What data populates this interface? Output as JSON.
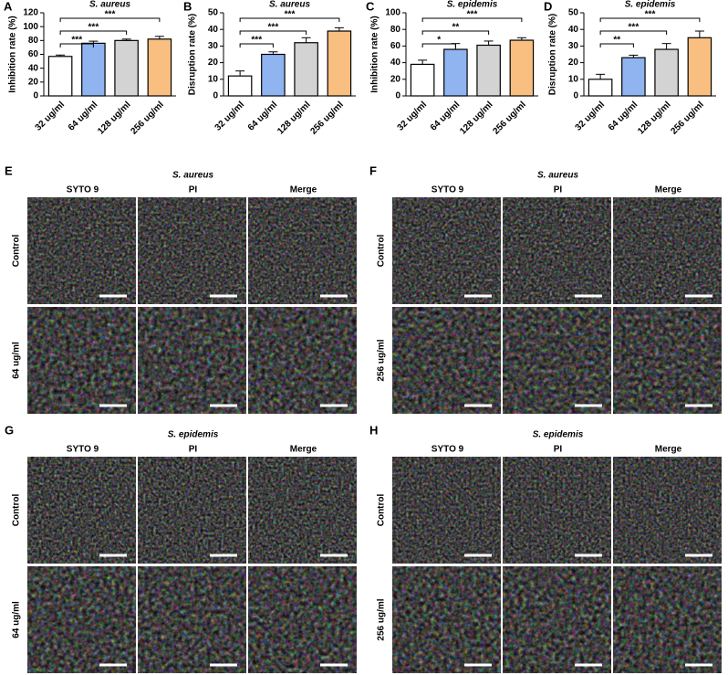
{
  "chart_data": [
    {
      "type": "bar",
      "panel": "A",
      "title": "S. aureus",
      "ylabel": "Inhibition rate (%)",
      "categories": [
        "32 ug/ml",
        "64 ug/ml",
        "128 ug/ml",
        "256 ug/ml"
      ],
      "values": [
        57,
        76,
        80,
        82
      ],
      "errors": [
        2,
        3,
        2,
        4
      ],
      "colors": [
        "#ffffff",
        "#8fb4f0",
        "#d3d3d3",
        "#f9bf80"
      ],
      "ylim": [
        0,
        120
      ],
      "yticks": [
        0,
        20,
        40,
        60,
        80,
        100,
        120
      ],
      "significance": [
        {
          "label": "***",
          "between": [
            0,
            1
          ]
        },
        {
          "label": "***",
          "between": [
            0,
            2
          ]
        },
        {
          "label": "***",
          "between": [
            0,
            3
          ]
        }
      ]
    },
    {
      "type": "bar",
      "panel": "B",
      "title": "S. aureus",
      "ylabel": "Disruption rate (%)",
      "categories": [
        "32 ug/ml",
        "64 ug/ml",
        "128 ug/ml",
        "256 ug/ml"
      ],
      "values": [
        12,
        25,
        32,
        39
      ],
      "errors": [
        3,
        1.5,
        3,
        2
      ],
      "colors": [
        "#ffffff",
        "#8fb4f0",
        "#d3d3d3",
        "#f9bf80"
      ],
      "ylim": [
        0,
        50
      ],
      "yticks": [
        0,
        10,
        20,
        30,
        40,
        50
      ],
      "significance": [
        {
          "label": "***",
          "between": [
            0,
            1
          ]
        },
        {
          "label": "***",
          "between": [
            0,
            2
          ]
        },
        {
          "label": "***",
          "between": [
            0,
            3
          ]
        }
      ]
    },
    {
      "type": "bar",
      "panel": "C",
      "title": "S. epidemis",
      "ylabel": "Inhibition rate (%)",
      "categories": [
        "32 ug/ml",
        "64 ug/ml",
        "128 ug/ml",
        "256 ug/ml"
      ],
      "values": [
        38,
        56,
        61,
        67
      ],
      "errors": [
        5,
        7,
        5,
        3
      ],
      "colors": [
        "#ffffff",
        "#8fb4f0",
        "#d3d3d3",
        "#f9bf80"
      ],
      "ylim": [
        0,
        100
      ],
      "yticks": [
        0,
        20,
        40,
        60,
        80,
        100
      ],
      "significance": [
        {
          "label": "*",
          "between": [
            0,
            1
          ]
        },
        {
          "label": "**",
          "between": [
            0,
            2
          ]
        },
        {
          "label": "***",
          "between": [
            0,
            3
          ]
        }
      ]
    },
    {
      "type": "bar",
      "panel": "D",
      "title": "S. epidemis",
      "ylabel": "Disruption rate (%)",
      "categories": [
        "32 ug/ml",
        "64 ug/ml",
        "128 ug/ml",
        "256 ug/ml"
      ],
      "values": [
        10,
        23,
        28,
        35
      ],
      "errors": [
        3,
        1.5,
        3.5,
        4
      ],
      "colors": [
        "#ffffff",
        "#8fb4f0",
        "#d3d3d3",
        "#f9bf80"
      ],
      "ylim": [
        0,
        50
      ],
      "yticks": [
        0,
        10,
        20,
        30,
        40,
        50
      ],
      "significance": [
        {
          "label": "**",
          "between": [
            0,
            1
          ]
        },
        {
          "label": "***",
          "between": [
            0,
            2
          ]
        },
        {
          "label": "***",
          "between": [
            0,
            3
          ]
        }
      ]
    }
  ],
  "micrographs": [
    {
      "panel": "E",
      "title": "S. aureus",
      "columns": [
        "SYTO 9",
        "PI",
        "Merge"
      ],
      "rows": [
        "Control",
        "64 ug/ml"
      ]
    },
    {
      "panel": "F",
      "title": "S. aureus",
      "columns": [
        "SYTO 9",
        "PI",
        "Merge"
      ],
      "rows": [
        "Control",
        "256 ug/ml"
      ]
    },
    {
      "panel": "G",
      "title": "S. epidemis",
      "columns": [
        "SYTO 9",
        "PI",
        "Merge"
      ],
      "rows": [
        "Control",
        "64 ug/ml"
      ]
    },
    {
      "panel": "H",
      "title": "S. epidemis",
      "columns": [
        "SYTO 9",
        "PI",
        "Merge"
      ],
      "rows": [
        "Control",
        "256 ug/ml"
      ]
    }
  ]
}
